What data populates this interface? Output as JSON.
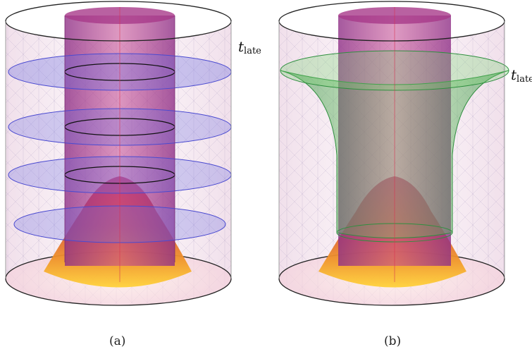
{
  "panels": [
    {
      "caption": "(a)",
      "label_symbol": "t",
      "label_subscript": "late"
    },
    {
      "caption": "(b)",
      "label_symbol": "t",
      "label_subscript": "late"
    }
  ],
  "colors": {
    "outer_cylinder": "#f3d9e6",
    "inner_tube": "#b0337f",
    "slices": "#6f6fe0",
    "surface_green": "#4fc04f",
    "dome_top": "#c43a6a",
    "dome_bottom": "#ffc62e"
  }
}
